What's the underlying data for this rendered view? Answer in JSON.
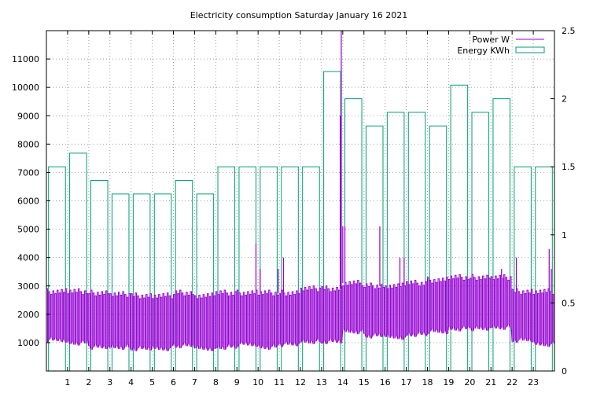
{
  "chart_data": {
    "title": "Electricity consumption Saturday January 16 2021",
    "type": "line",
    "x_range": [
      0,
      24
    ],
    "x_ticks": [
      1,
      2,
      3,
      4,
      5,
      6,
      7,
      8,
      9,
      10,
      11,
      12,
      13,
      14,
      15,
      16,
      17,
      18,
      19,
      20,
      21,
      22,
      23
    ],
    "y_range": [
      0,
      12000
    ],
    "y_ticks": [
      1000,
      2000,
      3000,
      4000,
      5000,
      6000,
      7000,
      8000,
      9000,
      10000,
      11000
    ],
    "y2_range": [
      0,
      2.5
    ],
    "y2_ticks": [
      "0",
      "0.5",
      "1",
      "1.5",
      "2",
      "2.5"
    ],
    "y2_tick_values": [
      0,
      0.5,
      1,
      1.5,
      2,
      2.5
    ],
    "grid": true,
    "legend_position": "top-right",
    "series": [
      {
        "name": "Power W",
        "color": "#9400d3",
        "axis": "left",
        "hourly_profile": [
          {
            "hour": 0,
            "low": 1100,
            "high": 2800
          },
          {
            "hour": 1,
            "low": 1000,
            "high": 2800
          },
          {
            "hour": 2,
            "low": 850,
            "high": 2750
          },
          {
            "hour": 3,
            "low": 850,
            "high": 2700
          },
          {
            "hour": 4,
            "low": 800,
            "high": 2650
          },
          {
            "hour": 5,
            "low": 800,
            "high": 2650
          },
          {
            "hour": 6,
            "low": 900,
            "high": 2750
          },
          {
            "hour": 7,
            "low": 800,
            "high": 2650
          },
          {
            "hour": 8,
            "low": 850,
            "high": 2750
          },
          {
            "hour": 9,
            "low": 950,
            "high": 2750
          },
          {
            "hour": 10,
            "low": 850,
            "high": 2750
          },
          {
            "hour": 11,
            "low": 950,
            "high": 2750
          },
          {
            "hour": 12,
            "low": 1050,
            "high": 2900
          },
          {
            "hour": 13,
            "low": 1050,
            "high": 2900
          },
          {
            "hour": 14,
            "low": 1400,
            "high": 3100
          },
          {
            "hour": 15,
            "low": 1250,
            "high": 3000
          },
          {
            "hour": 16,
            "low": 1200,
            "high": 3000
          },
          {
            "hour": 17,
            "low": 1300,
            "high": 3100
          },
          {
            "hour": 18,
            "low": 1400,
            "high": 3200
          },
          {
            "hour": 19,
            "low": 1500,
            "high": 3300
          },
          {
            "hour": 20,
            "low": 1500,
            "high": 3300
          },
          {
            "hour": 21,
            "low": 1550,
            "high": 3300
          },
          {
            "hour": 22,
            "low": 1100,
            "high": 2800
          },
          {
            "hour": 23,
            "low": 950,
            "high": 2800
          }
        ],
        "spikes": [
          {
            "x": 9.9,
            "y": 4500
          },
          {
            "x": 10.1,
            "y": 3600
          },
          {
            "x": 10.95,
            "y": 3600
          },
          {
            "x": 11.2,
            "y": 4000
          },
          {
            "x": 13.88,
            "y": 9000
          },
          {
            "x": 13.93,
            "y": 12000
          },
          {
            "x": 14.0,
            "y": 5100
          },
          {
            "x": 14.1,
            "y": 5100
          },
          {
            "x": 15.75,
            "y": 5100
          },
          {
            "x": 16.7,
            "y": 4000
          },
          {
            "x": 16.9,
            "y": 4000
          },
          {
            "x": 21.5,
            "y": 3600
          },
          {
            "x": 22.2,
            "y": 4000
          },
          {
            "x": 23.75,
            "y": 4300
          },
          {
            "x": 23.85,
            "y": 3600
          }
        ]
      },
      {
        "name": "Energy KWh",
        "color": "#009e73",
        "axis": "right",
        "type": "bar",
        "hours": [
          0,
          1,
          2,
          3,
          4,
          5,
          6,
          7,
          8,
          9,
          10,
          11,
          12,
          13,
          14,
          15,
          16,
          17,
          18,
          19,
          20,
          21,
          22,
          23
        ],
        "values": [
          1.5,
          1.6,
          1.4,
          1.3,
          1.3,
          1.3,
          1.4,
          1.3,
          1.5,
          1.5,
          1.5,
          1.5,
          1.5,
          2.2,
          2.0,
          1.8,
          1.9,
          1.9,
          1.8,
          2.1,
          1.9,
          2.0,
          1.5,
          1.5
        ]
      }
    ]
  }
}
